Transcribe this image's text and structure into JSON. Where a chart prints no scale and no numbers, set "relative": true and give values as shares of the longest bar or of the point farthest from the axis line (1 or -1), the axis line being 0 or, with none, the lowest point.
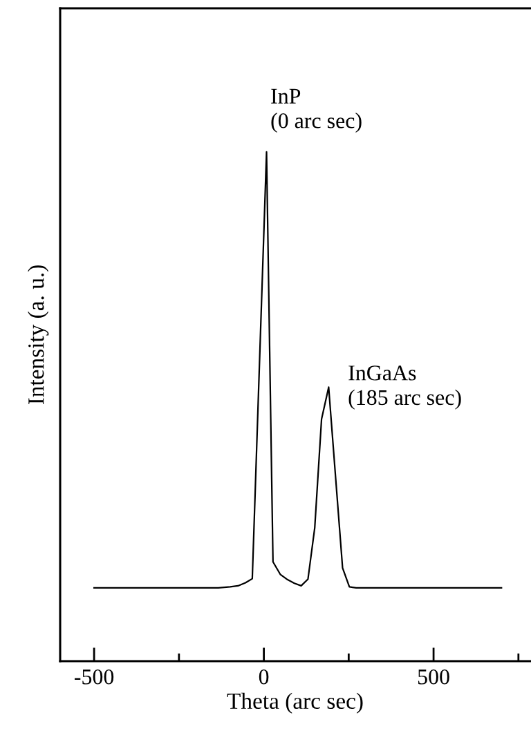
{
  "chart_data": {
    "type": "line",
    "relative": true,
    "xlabel": "Theta (arc sec)",
    "ylabel": "Intensity (a. u.)",
    "xlim": [
      -600,
      785
    ],
    "xticks": [
      -500,
      {
        "value": -250,
        "label": null
      },
      0,
      {
        "value": 250,
        "label": null
      },
      500,
      {
        "value": 750,
        "label": null
      }
    ],
    "series": [
      {
        "color": "#000000",
        "x": [
          -500,
          -134,
          -99,
          -76,
          -54,
          -34,
          8,
          27,
          49,
          70,
          90,
          110,
          130,
          150,
          170,
          191,
          212,
          232,
          252,
          272,
          700
        ],
        "values": [
          0.144,
          0.144,
          0.146,
          0.148,
          0.154,
          0.162,
          1.0,
          0.195,
          0.17,
          0.16,
          0.153,
          0.148,
          0.161,
          0.262,
          0.475,
          0.538,
          0.356,
          0.183,
          0.146,
          0.144,
          0.144
        ]
      }
    ],
    "annotations": [
      {
        "text": "InP\n(0 arc sec)",
        "x": 8,
        "y": 1.0
      },
      {
        "text": "InGaAs\n(185 arc sec)",
        "x": 191,
        "y": 0.538
      }
    ],
    "grid": false,
    "legend": false,
    "marker": "none",
    "line_style": "solid"
  }
}
